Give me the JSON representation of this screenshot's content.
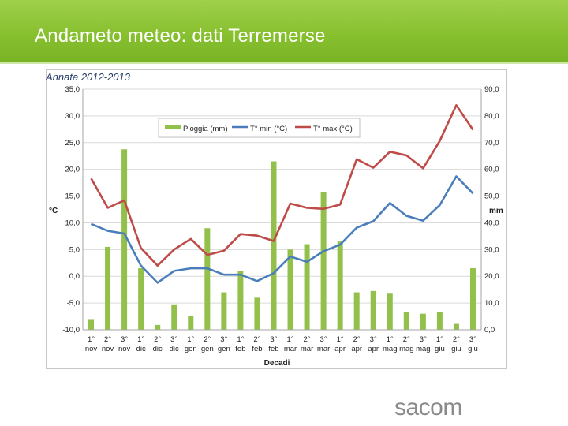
{
  "slide": {
    "title": "Andameto meteo: dati Terremerse",
    "logo_text": "sacom"
  },
  "colors": {
    "banner": "#86bf2e",
    "bars": "#92c04a",
    "tmin": "#4a7ebb",
    "tmax": "#be4b48",
    "grid": "#d9d9d9"
  },
  "chart_data": {
    "type": "bar",
    "title": "Annata 2012-2013",
    "xlabel": "Decadi",
    "ylabel_left": "°C",
    "ylabel_right": "mm",
    "ylim_left": [
      -10,
      35
    ],
    "ylim_right": [
      0,
      90
    ],
    "yticks_left": [
      "35,0",
      "30,0",
      "25,0",
      "20,0",
      "15,0",
      "10,0",
      "5,0",
      "0,0",
      "-5,0",
      "-10,0"
    ],
    "yticks_right": [
      "90,0",
      "80,0",
      "70,0",
      "60,0",
      "50,0",
      "40,0",
      "30,0",
      "20,0",
      "10,0",
      "0,0"
    ],
    "legend_position": "top-center",
    "grid": true,
    "categories": [
      {
        "dec": "1°",
        "month": "nov"
      },
      {
        "dec": "2°",
        "month": "nov"
      },
      {
        "dec": "3°",
        "month": "nov"
      },
      {
        "dec": "1°",
        "month": "dic"
      },
      {
        "dec": "2°",
        "month": "dic"
      },
      {
        "dec": "3°",
        "month": "dic"
      },
      {
        "dec": "1°",
        "month": "gen"
      },
      {
        "dec": "2°",
        "month": "gen"
      },
      {
        "dec": "3°",
        "month": "gen"
      },
      {
        "dec": "1°",
        "month": "feb"
      },
      {
        "dec": "2°",
        "month": "feb"
      },
      {
        "dec": "3°",
        "month": "feb"
      },
      {
        "dec": "1°",
        "month": "mar"
      },
      {
        "dec": "2°",
        "month": "mar"
      },
      {
        "dec": "3°",
        "month": "mar"
      },
      {
        "dec": "1°",
        "month": "apr"
      },
      {
        "dec": "2°",
        "month": "apr"
      },
      {
        "dec": "3°",
        "month": "apr"
      },
      {
        "dec": "1°",
        "month": "mag"
      },
      {
        "dec": "2°",
        "month": "mag"
      },
      {
        "dec": "3°",
        "month": "mag"
      },
      {
        "dec": "1°",
        "month": "giu"
      },
      {
        "dec": "2°",
        "month": "giu"
      },
      {
        "dec": "3°",
        "month": "giu"
      }
    ],
    "series": [
      {
        "name": "Pioggia (mm)",
        "kind": "bar",
        "axis": "right",
        "values": [
          4.0,
          31.0,
          67.5,
          23.0,
          1.8,
          9.5,
          5.0,
          38.0,
          14.0,
          22.0,
          12.0,
          63.0,
          30.0,
          32.0,
          51.5,
          33.0,
          14.0,
          14.5,
          13.5,
          6.5,
          6.0,
          6.5,
          2.2,
          23.0
        ]
      },
      {
        "name": "T° min (°C)",
        "kind": "line",
        "axis": "left",
        "values": [
          9.8,
          8.5,
          8.0,
          2.0,
          -1.2,
          1.0,
          1.5,
          1.5,
          0.3,
          0.3,
          -0.9,
          0.6,
          3.7,
          2.7,
          4.7,
          5.9,
          9.1,
          10.3,
          13.7,
          11.3,
          10.4,
          13.3,
          18.7,
          15.5
        ]
      },
      {
        "name": "T° max (°C)",
        "kind": "line",
        "axis": "left",
        "values": [
          18.3,
          12.8,
          14.2,
          5.3,
          2.0,
          5.0,
          7.0,
          4.0,
          4.8,
          7.9,
          7.6,
          6.6,
          13.6,
          12.8,
          12.6,
          13.4,
          21.9,
          20.3,
          23.3,
          22.6,
          20.2,
          25.3,
          32.0,
          27.4
        ]
      }
    ]
  }
}
